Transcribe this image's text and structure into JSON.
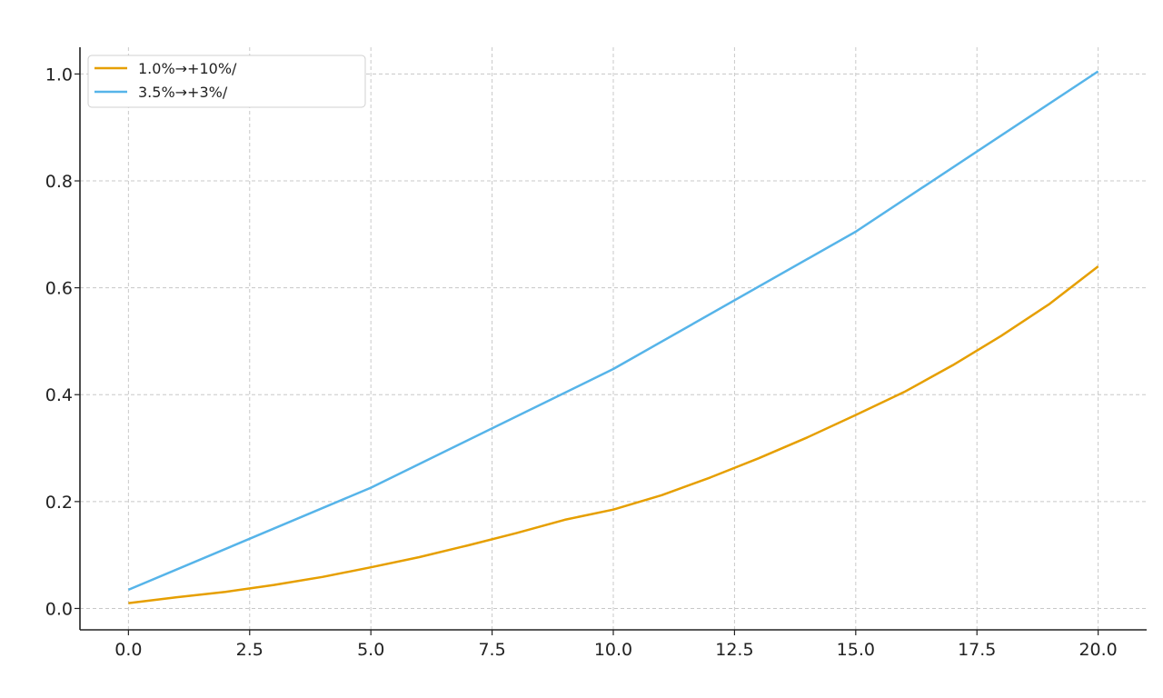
{
  "chart_data": {
    "type": "line",
    "title": "",
    "xlabel": "",
    "ylabel": "",
    "xlim": [
      -1,
      21
    ],
    "ylim": [
      -0.04,
      1.05
    ],
    "xticks": [
      0.0,
      2.5,
      5.0,
      7.5,
      10.0,
      12.5,
      15.0,
      17.5,
      20.0
    ],
    "xtick_labels": [
      "0.0",
      "2.5",
      "5.0",
      "7.5",
      "10.0",
      "12.5",
      "15.0",
      "17.5",
      "20.0"
    ],
    "yticks": [
      0.0,
      0.2,
      0.4,
      0.6,
      0.8,
      1.0
    ],
    "ytick_labels": [
      "0.0",
      "0.2",
      "0.4",
      "0.6",
      "0.8",
      "1.0"
    ],
    "grid": true,
    "legend_position": "top-left",
    "series": [
      {
        "name": "1.0%→+10%/",
        "color": "#E69F00",
        "x": [
          0,
          1,
          2,
          3,
          4,
          5,
          6,
          7,
          8,
          9,
          10,
          11,
          12,
          13,
          14,
          15,
          16,
          17,
          18,
          19,
          20
        ],
        "y": [
          0.01,
          0.021,
          0.031,
          0.044,
          0.059,
          0.077,
          0.096,
          0.118,
          0.141,
          0.166,
          0.185,
          0.212,
          0.245,
          0.281,
          0.32,
          0.362,
          0.405,
          0.455,
          0.51,
          0.57,
          0.64
        ]
      },
      {
        "name": "3.5%→+3%/",
        "color": "#56B4E9",
        "x": [
          0,
          5,
          10,
          15,
          20
        ],
        "y": [
          0.035,
          0.226,
          0.448,
          0.705,
          1.005
        ]
      }
    ]
  }
}
